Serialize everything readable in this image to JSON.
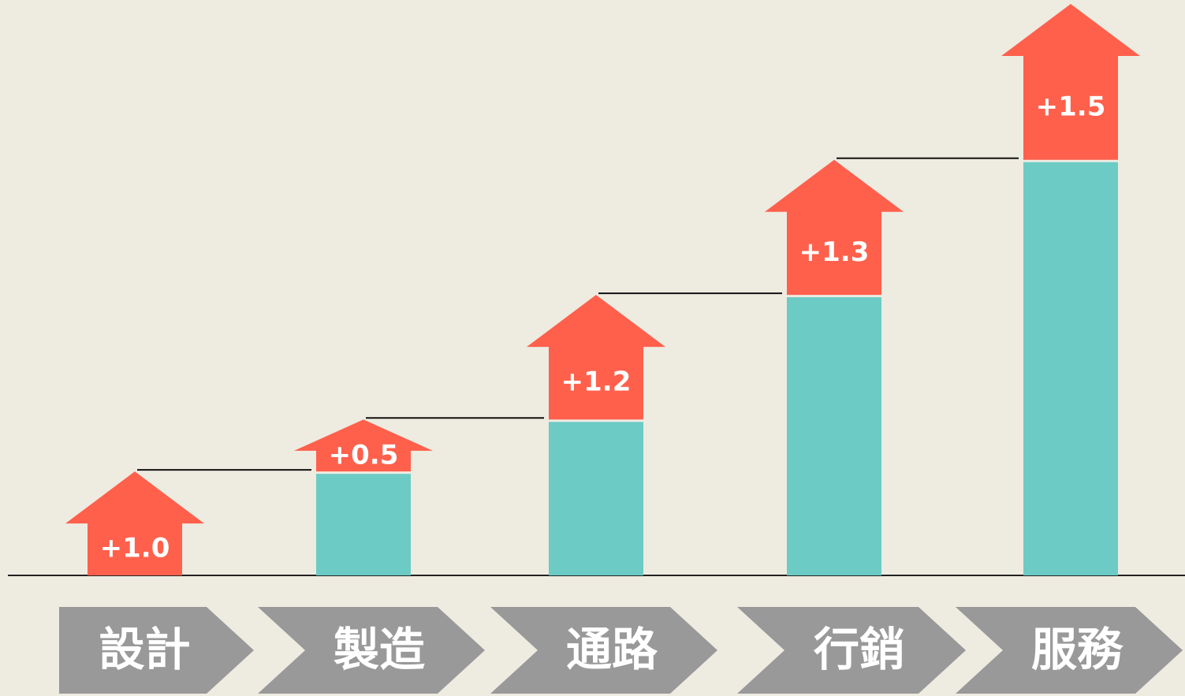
{
  "chart_data": {
    "type": "waterfall",
    "categories": [
      "設計",
      "製造",
      "通路",
      "行銷",
      "服務"
    ],
    "values": [
      1.0,
      0.5,
      1.2,
      1.3,
      1.5
    ],
    "value_labels": [
      "+1.0",
      "+0.5",
      "+1.2",
      "+1.3",
      "+1.5"
    ],
    "colors": {
      "increase": "#ff604c",
      "base": "#6ccbc5",
      "category": "#999999"
    },
    "ylim": [
      0,
      5.5
    ]
  }
}
